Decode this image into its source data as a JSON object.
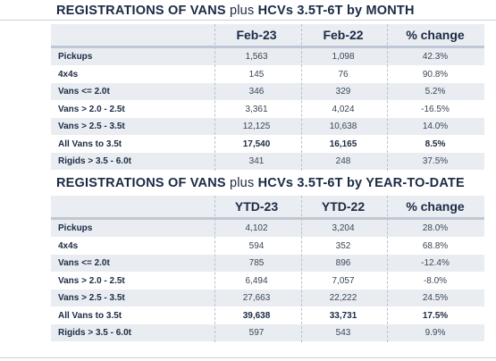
{
  "table1": {
    "title_a": "REGISTRATIONS OF VANS",
    "title_plus": "plus",
    "title_b": "HCVs 3.5T-6T by MONTH",
    "headers": [
      "Feb-23",
      "Feb-22",
      "% change"
    ],
    "rows": [
      {
        "label": "Pickups",
        "a": "1,563",
        "b": "1,098",
        "c": "42.3%"
      },
      {
        "label": "4x4s",
        "a": "145",
        "b": "76",
        "c": "90.8%"
      },
      {
        "label": "Vans <= 2.0t",
        "a": "346",
        "b": "329",
        "c": "5.2%"
      },
      {
        "label": "Vans > 2.0 - 2.5t",
        "a": "3,361",
        "b": "4,024",
        "c": "-16.5%"
      },
      {
        "label": "Vans > 2.5 - 3.5t",
        "a": "12,125",
        "b": "10,638",
        "c": "14.0%"
      },
      {
        "label": "All Vans to 3.5t",
        "a": "17,540",
        "b": "16,165",
        "c": "8.5%"
      },
      {
        "label": "Rigids > 3.5 - 6.0t",
        "a": "341",
        "b": "248",
        "c": "37.5%"
      }
    ]
  },
  "table2": {
    "title_a": "REGISTRATIONS OF VANS",
    "title_plus": "plus",
    "title_b": "HCVs 3.5T-6T by YEAR-TO-DATE",
    "headers": [
      "YTD-23",
      "YTD-22",
      "% change"
    ],
    "rows": [
      {
        "label": "Pickups",
        "a": "4,102",
        "b": "3,204",
        "c": "28.0%"
      },
      {
        "label": "4x4s",
        "a": "594",
        "b": "352",
        "c": "68.8%"
      },
      {
        "label": "Vans <= 2.0t",
        "a": "785",
        "b": "896",
        "c": "-12.4%"
      },
      {
        "label": "Vans > 2.0 - 2.5t",
        "a": "6,494",
        "b": "7,057",
        "c": "-8.0%"
      },
      {
        "label": "Vans > 2.5 - 3.5t",
        "a": "27,663",
        "b": "22,222",
        "c": "24.5%"
      },
      {
        "label": "All Vans to 3.5t",
        "a": "39,638",
        "b": "33,731",
        "c": "17.5%"
      },
      {
        "label": "Rigids > 3.5 - 6.0t",
        "a": "597",
        "b": "543",
        "c": "9.9%"
      }
    ]
  }
}
